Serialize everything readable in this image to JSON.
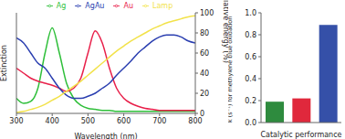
{
  "chart_data": [
    {
      "type": "line",
      "xlabel": "Wavelength (nm)",
      "ylabel": "Extinction",
      "y2label": "Relative energy (%)",
      "x": [
        300,
        320,
        340,
        360,
        380,
        400,
        420,
        440,
        460,
        480,
        500,
        520,
        540,
        560,
        580,
        600,
        620,
        640,
        660,
        680,
        700,
        720,
        740,
        760,
        780,
        800
      ],
      "xlim": [
        300,
        800
      ],
      "xticks": [
        300,
        400,
        500,
        600,
        700,
        800
      ],
      "ylim": [
        0,
        1
      ],
      "y2lim": [
        0,
        100
      ],
      "y2ticks": [
        0,
        20,
        40,
        60,
        80,
        100
      ],
      "legend": "top",
      "series": [
        {
          "name": "Ag",
          "color": "#2fbf3a",
          "values": [
            0.15,
            0.1,
            0.12,
            0.25,
            0.6,
            0.85,
            0.6,
            0.3,
            0.15,
            0.08,
            0.05,
            0.04,
            0.03,
            0.03,
            0.02,
            0.02,
            0.02,
            0.02,
            0.02,
            0.02,
            0.02,
            0.02,
            0.02,
            0.02,
            0.02,
            0.02
          ]
        },
        {
          "name": "Au",
          "color": "#e8204a",
          "values": [
            0.45,
            0.4,
            0.35,
            0.32,
            0.3,
            0.28,
            0.25,
            0.22,
            0.25,
            0.35,
            0.6,
            0.82,
            0.7,
            0.45,
            0.25,
            0.15,
            0.1,
            0.07,
            0.05,
            0.04,
            0.03,
            0.03,
            0.03,
            0.03,
            0.03,
            0.03
          ]
        },
        {
          "name": "AgAu",
          "color": "#2b3fb0",
          "values": [
            0.75,
            0.7,
            0.6,
            0.5,
            0.45,
            0.35,
            0.25,
            0.18,
            0.15,
            0.15,
            0.17,
            0.2,
            0.25,
            0.3,
            0.38,
            0.45,
            0.52,
            0.6,
            0.66,
            0.72,
            0.76,
            0.78,
            0.78,
            0.76,
            0.72,
            0.7
          ]
        },
        {
          "name": "Lamp",
          "color": "#f2e24a",
          "axis": "y2",
          "values": [
            1,
            2,
            4,
            6,
            9,
            13,
            17,
            22,
            27,
            32,
            38,
            44,
            50,
            56,
            62,
            67,
            72,
            76,
            80,
            84,
            87,
            90,
            92,
            94,
            96,
            97
          ]
        }
      ]
    },
    {
      "type": "bar",
      "xlabel": "Catalytic performance",
      "ylabel": "k (s⁻¹) for methylene blue oxidation",
      "categories": [
        null,
        null,
        null
      ],
      "values": [
        0.19,
        0.22,
        0.89
      ],
      "colors": [
        "#2e8b3e",
        "#e0283c",
        "#3550a8"
      ],
      "ylim": [
        0,
        1
      ],
      "yticks": [
        {
          "value": 0,
          "label": "0.0"
        },
        {
          "value": 0.2,
          "label": "0.2"
        },
        {
          "value": 0.4,
          "label": "0.4"
        },
        {
          "value": 0.6,
          "label": "0.6"
        },
        {
          "value": 0.8,
          "label": "0.8"
        },
        {
          "value": 1,
          "label": "1.0"
        }
      ]
    }
  ]
}
